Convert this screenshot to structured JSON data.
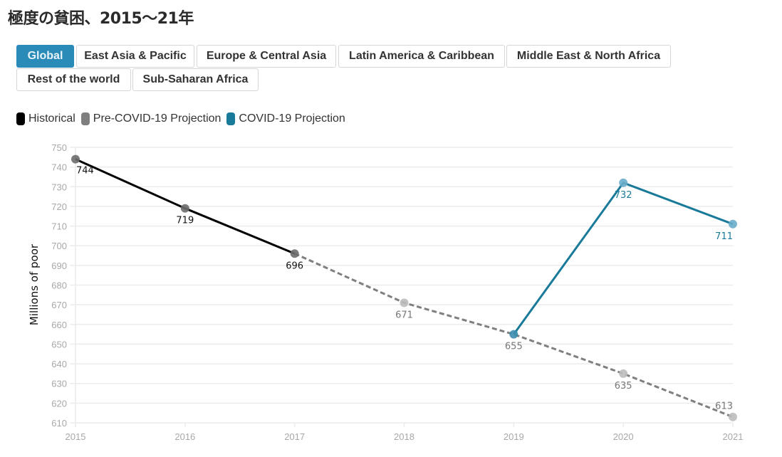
{
  "title": "極度の貧困、2015～21年",
  "tabs": [
    {
      "label": "Global",
      "active": true
    },
    {
      "label": "East Asia & Pacific",
      "active": false
    },
    {
      "label": "Europe & Central Asia",
      "active": false
    },
    {
      "label": "Latin America & Caribbean",
      "active": false
    },
    {
      "label": "Middle East & North Africa",
      "active": false
    },
    {
      "label": "Rest of the world",
      "active": false
    },
    {
      "label": "Sub-Saharan Africa",
      "active": false
    }
  ],
  "legend": [
    {
      "label": "Historical",
      "color": "#000000"
    },
    {
      "label": "Pre-COVID-19 Projection",
      "color": "#7f7f7f"
    },
    {
      "label": "COVID-19 Projection",
      "color": "#1a7a99"
    }
  ],
  "chart_data": {
    "type": "line",
    "title": "極度の貧困、2015～21年",
    "xlabel": "",
    "ylabel": "Millions of poor",
    "x": [
      2015,
      2016,
      2017,
      2018,
      2019,
      2020,
      2021
    ],
    "xticks": [
      "2015",
      "2016",
      "2017",
      "2018",
      "2019",
      "2020",
      "2021"
    ],
    "yticks": [
      "610",
      "620",
      "630",
      "640",
      "650",
      "660",
      "670",
      "680",
      "690",
      "700",
      "710",
      "720",
      "730",
      "740",
      "750"
    ],
    "ylim": [
      610,
      750
    ],
    "grid": true,
    "legend_position": "top-left",
    "series": [
      {
        "name": "Historical",
        "color": "#000000",
        "style": "solid",
        "points": [
          {
            "x": 2015,
            "y": 744
          },
          {
            "x": 2016,
            "y": 719
          },
          {
            "x": 2017,
            "y": 696
          }
        ]
      },
      {
        "name": "Pre-COVID-19 Projection",
        "color": "#7f7f7f",
        "style": "dashed",
        "points": [
          {
            "x": 2017,
            "y": 696
          },
          {
            "x": 2018,
            "y": 671
          },
          {
            "x": 2019,
            "y": 655
          },
          {
            "x": 2020,
            "y": 635
          },
          {
            "x": 2021,
            "y": 613
          }
        ]
      },
      {
        "name": "COVID-19 Projection",
        "color": "#1a7a99",
        "style": "solid",
        "points": [
          {
            "x": 2019,
            "y": 655
          },
          {
            "x": 2020,
            "y": 732
          },
          {
            "x": 2021,
            "y": 711
          }
        ]
      }
    ],
    "data_labels": [
      {
        "x": 2015,
        "y": 744,
        "text": "744",
        "series": "Historical"
      },
      {
        "x": 2016,
        "y": 719,
        "text": "719",
        "series": "Historical"
      },
      {
        "x": 2017,
        "y": 696,
        "text": "696",
        "series": "Historical"
      },
      {
        "x": 2018,
        "y": 671,
        "text": "671",
        "series": "Pre-COVID-19 Projection"
      },
      {
        "x": 2019,
        "y": 655,
        "text": "655",
        "series": "Pre-COVID-19 Projection"
      },
      {
        "x": 2020,
        "y": 635,
        "text": "635",
        "series": "Pre-COVID-19 Projection"
      },
      {
        "x": 2021,
        "y": 613,
        "text": "613",
        "series": "Pre-COVID-19 Projection",
        "above": true
      },
      {
        "x": 2020,
        "y": 732,
        "text": "732",
        "series": "COVID-19 Projection"
      },
      {
        "x": 2021,
        "y": 711,
        "text": "711",
        "series": "COVID-19 Projection"
      }
    ]
  }
}
